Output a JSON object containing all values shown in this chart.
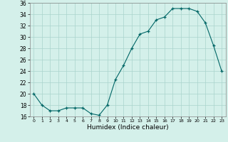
{
  "x": [
    0,
    1,
    2,
    3,
    4,
    5,
    6,
    7,
    8,
    9,
    10,
    11,
    12,
    13,
    14,
    15,
    16,
    17,
    18,
    19,
    20,
    21,
    22,
    23
  ],
  "y": [
    20,
    18,
    17,
    17,
    17.5,
    17.5,
    17.5,
    16.5,
    16.2,
    18,
    22.5,
    25,
    28,
    30.5,
    31,
    33,
    33.5,
    35,
    35,
    35,
    34.5,
    32.5,
    28.5,
    24
  ],
  "xlabel": "Humidex (Indice chaleur)",
  "ylim": [
    16,
    36
  ],
  "xlim": [
    -0.5,
    23.5
  ],
  "yticks": [
    16,
    18,
    20,
    22,
    24,
    26,
    28,
    30,
    32,
    34,
    36
  ],
  "xticks": [
    0,
    1,
    2,
    3,
    4,
    5,
    6,
    7,
    8,
    9,
    10,
    11,
    12,
    13,
    14,
    15,
    16,
    17,
    18,
    19,
    20,
    21,
    22,
    23
  ],
  "line_color": "#006666",
  "marker": "+",
  "bg_color": "#d4f0ea",
  "grid_color": "#aad4cc"
}
